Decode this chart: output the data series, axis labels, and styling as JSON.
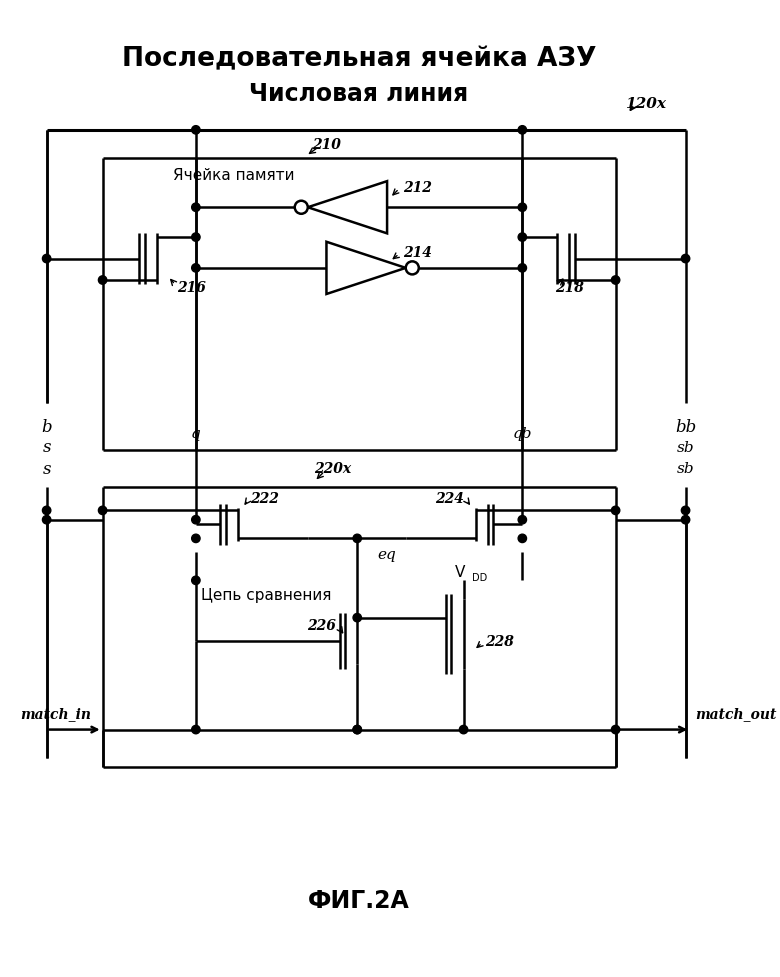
{
  "title1": "Последовательная ячейка АЗУ",
  "title2": "Числовая линия",
  "fig_label": "ФИГ.2А",
  "label_120x": "120x",
  "label_210": "210",
  "label_212": "212",
  "label_214": "214",
  "label_216": "216",
  "label_218": "218",
  "label_220x": "220x",
  "label_222": "222",
  "label_224": "224",
  "label_226": "226",
  "label_228": "228",
  "label_b": "b",
  "label_bb": "bb",
  "label_q": "q",
  "label_qb": "qb",
  "label_s": "s",
  "label_sb": "sb",
  "label_eq": "eq",
  "label_VDD": "V",
  "label_VDD_sub": "DD",
  "label_memory": "Ячейка памяти",
  "label_compare": "Цепь сравнения",
  "label_match_in": "match_in",
  "label_match_out": "match_out",
  "bg_color": "#ffffff",
  "line_color": "#000000"
}
